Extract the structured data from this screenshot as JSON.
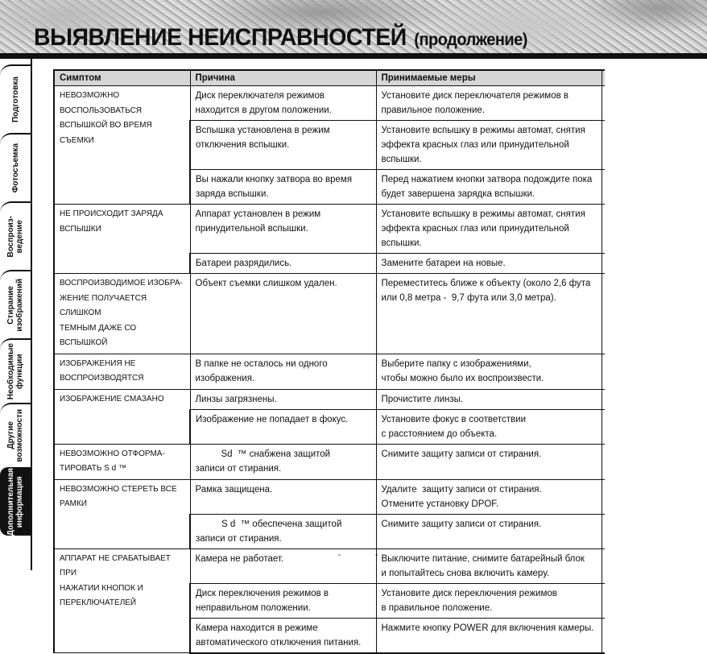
{
  "header": {
    "title": "ВЫЯВЛЕНИЕ НЕИСПРАВНОСТЕЙ",
    "subtitle": "(продолжение)"
  },
  "sidebar": {
    "tabs": [
      {
        "label": "Подготовка",
        "active": false
      },
      {
        "label": "Фотосъемка",
        "active": false
      },
      {
        "label": "Воспроиз-\nведение",
        "active": false
      },
      {
        "label": "Стирание\nизображений",
        "active": false
      },
      {
        "label": "Необходимые\nфункции",
        "active": false
      },
      {
        "label": "Другие\nвозможности",
        "active": false
      },
      {
        "label": "Дополнительная\nинформация",
        "active": true
      }
    ]
  },
  "table": {
    "headers": [
      "Симптом",
      "Причина",
      "Принимаемые меры"
    ],
    "groups": [
      {
        "symptom": "НЕВОЗМОЖНО\nВОСПОЛЬЗОВАТЬСЯ\nВСПЫШКОЙ ВО ВРЕМЯ\nСЪЕМКИ",
        "rows": [
          {
            "cause": "Диск переключателя режимов\nнаходится в другом положении.",
            "action": "Установите диск переключателя режимов в\nправильное положение."
          },
          {
            "cause": "Вспышка установлена в режим\nотключения вспышки.",
            "action": "Установите вспышку в режимы автомат, снятия\nэффекта красных глаз или принудительной вспышки."
          },
          {
            "cause": "Вы нажали кнопку затвора во время\nзаряда вспышки.",
            "action": "Перед нажатием кнопки затвора подождите пока\nбудет завершена зарядка вспышки."
          }
        ]
      },
      {
        "symptom": "НЕ ПРОИСХОДИТ ЗАРЯДА\nВСПЫШКИ",
        "rows": [
          {
            "cause": "Аппарат установлен в режим\nпринудительной вспышки.",
            "action": "Установите вспышку в режимы автомат, снятия\nэффекта красных глаз или принудительной вспышки."
          },
          {
            "cause": "Батареи разрядились.",
            "action": "Замените батареи на новые."
          }
        ]
      },
      {
        "symptom": "ВОСПРОИЗВОДИМОЕ ИЗОБРА-\nЖЕНИЕ ПОЛУЧАЕТСЯ СЛИШКОМ\nТЕМНЫМ ДАЖЕ СО ВСПЫШКОЙ",
        "rows": [
          {
            "cause": "Объект съемки слишком удален.",
            "action": "Переместитесь ближе к объекту (около 2,6 фута\nили 0,8 метра -  9,7 фута или 3,0 метра)."
          }
        ]
      },
      {
        "symptom": "ИЗОБРАЖЕНИЯ НЕ\nВОСПРОИЗВОДЯТСЯ",
        "rows": [
          {
            "cause": "В папке не осталось ни одного\nизображения.",
            "action": "Выберите папку с изображениями,\nчтобы можно было их воспроизвести."
          }
        ]
      },
      {
        "symptom": "ИЗОБРАЖЕНИЕ СМАЗАНО",
        "rows": [
          {
            "cause": "Линзы загрязнены.",
            "action": "Прочистите линзы."
          },
          {
            "cause": "Изображение не попадает в фокус.",
            "action": "Установите фокус в соответствии\nс расстоянием до объекта."
          }
        ]
      },
      {
        "symptom": "НЕВОЗМОЖНО ОТФОРМА-\nТИРОВАТЬ S d ™",
        "rows": [
          {
            "cause": "          Sd  ™ снабжена защитой\nзаписи от стирания.",
            "action": "Снимите защиту записи от стирания."
          }
        ]
      },
      {
        "symptom": "НЕВОЗМОЖНО СТЕРЕТЬ ВСЕ\nРАМКИ",
        "rows": [
          {
            "cause": "Рамка защищена.",
            "action": "Удалите  защиту записи от стирания.\nОтмените установку DPOF."
          },
          {
            "cause": "          S d  ™ обеспечена защитой\nзаписи от стирания.",
            "action": "Снимите защиту записи от стирания."
          }
        ]
      },
      {
        "symptom": "АППАРАТ НЕ СРАБАТЫВАЕТ ПРИ\nНАЖАТИИ КНОПОК И\nПЕРЕКЛЮЧАТЕЛЕЙ",
        "rows": [
          {
            "cause": "Камера не работает.",
            "action": "Выключите питание, снимите батарейный блок\nи попытайтесь снова включить камеру."
          },
          {
            "cause": "Диск переключения режимов в\nнеправильном положении.",
            "action": "Установите диск переключения режимов\nв правильное положение."
          },
          {
            "cause": "Камера находится в режиме\nавтоматического отключения питания.",
            "action": "Нажмите кнопку POWER для включения камеры."
          }
        ]
      }
    ]
  },
  "footer": {
    "page_marks": "- -"
  }
}
